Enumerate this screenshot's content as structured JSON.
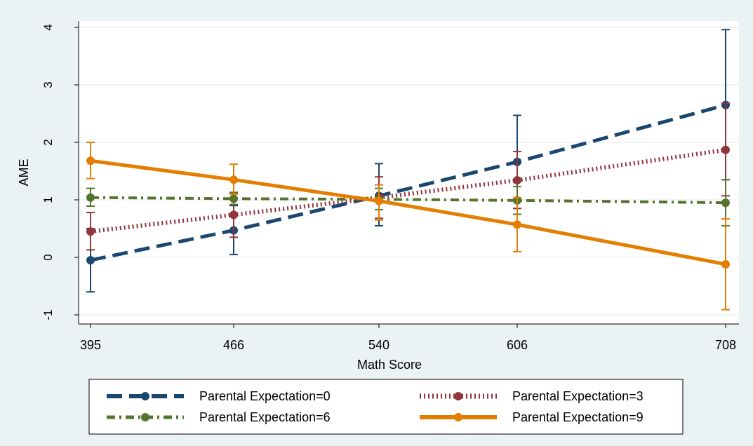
{
  "chart_data": {
    "type": "line",
    "title": "",
    "xlabel": "Math Score",
    "ylabel": "AME",
    "x": [
      395,
      466,
      540,
      606,
      708
    ],
    "xticks": [
      "395",
      "466",
      "540",
      "606",
      "708"
    ],
    "yticks": [
      "-1",
      "0",
      "1",
      "2",
      "3",
      "4"
    ],
    "ylim": [
      -1.15,
      4.15
    ],
    "grid": true,
    "legend_position": "bottom",
    "series": [
      {
        "name": "Parental Expectation=0",
        "color": "#1a476f",
        "style": "dash",
        "values": [
          -0.05,
          0.47,
          1.07,
          1.66,
          2.65
        ],
        "ci_low": [
          -0.6,
          0.05,
          0.55,
          0.85,
          1.35
        ],
        "ci_high": [
          0.5,
          0.9,
          1.63,
          2.47,
          3.96
        ]
      },
      {
        "name": "Parental Expectation=3",
        "color": "#90353b",
        "style": "dot",
        "values": [
          0.45,
          0.74,
          1.04,
          1.34,
          1.87
        ],
        "ci_low": [
          0.13,
          0.35,
          0.68,
          0.85,
          1.07
        ],
        "ci_high": [
          0.78,
          1.13,
          1.4,
          1.84,
          2.68
        ]
      },
      {
        "name": "Parental Expectation=6",
        "color": "#55752f",
        "style": "dashdot",
        "values": [
          1.04,
          1.02,
          1.01,
          0.99,
          0.95
        ],
        "ci_low": [
          0.89,
          0.92,
          0.83,
          0.75,
          0.55
        ],
        "ci_high": [
          1.2,
          1.12,
          1.2,
          1.23,
          1.35
        ]
      },
      {
        "name": "Parental Expectation=9",
        "color": "#e37e00",
        "style": "solid",
        "values": [
          1.68,
          1.35,
          0.98,
          0.57,
          -0.12
        ],
        "ci_low": [
          1.37,
          1.1,
          0.65,
          0.1,
          -0.91
        ],
        "ci_high": [
          2.0,
          1.62,
          1.26,
          1.04,
          0.67
        ]
      }
    ]
  }
}
